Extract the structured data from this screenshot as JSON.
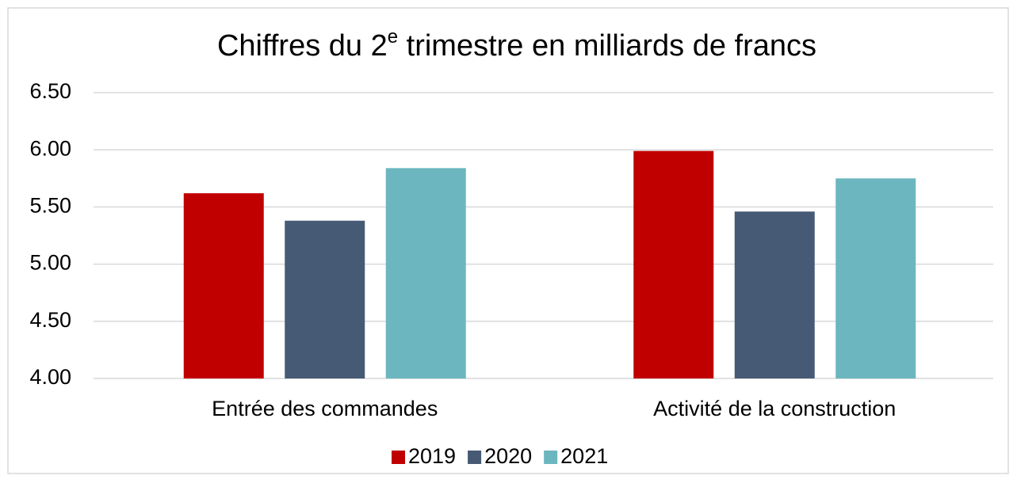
{
  "chart_data": {
    "type": "bar",
    "title": "Chiffres du 2e trimestre en milliards de francs",
    "categories": [
      "Entrée des commandes",
      "Activité de la construction"
    ],
    "series": [
      {
        "name": "2019",
        "color": "#c00000",
        "values": [
          5.62,
          5.99
        ]
      },
      {
        "name": "2020",
        "color": "#475a75",
        "values": [
          5.38,
          5.46
        ]
      },
      {
        "name": "2021",
        "color": "#6cb6bf",
        "values": [
          5.84,
          5.75
        ]
      }
    ],
    "ylim": [
      4,
      6.5
    ],
    "yticks": [
      {
        "value": 4,
        "label": "4.00"
      },
      {
        "value": 4.5,
        "label": "4.50"
      },
      {
        "value": 5,
        "label": "5.00"
      },
      {
        "value": 5.5,
        "label": "5.50"
      },
      {
        "value": 6,
        "label": "6.00"
      },
      {
        "value": 6.5,
        "label": "6.50"
      }
    ],
    "grid": true,
    "legend": "bottom"
  }
}
